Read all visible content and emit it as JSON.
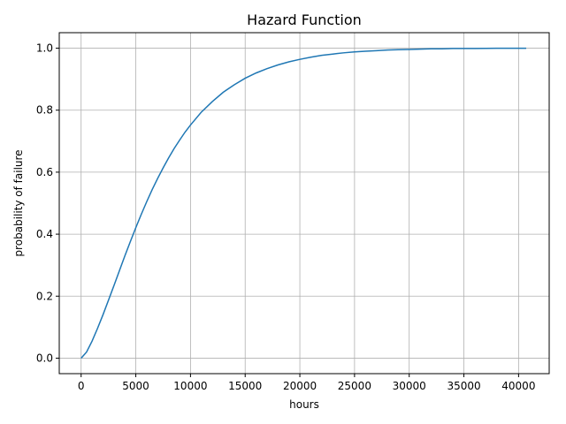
{
  "chart_data": {
    "type": "line",
    "title": "Hazard Function",
    "xlabel": "hours",
    "ylabel": "probability of failure",
    "xlim": [
      -2000,
      42800
    ],
    "ylim": [
      -0.05,
      1.05
    ],
    "xticks": [
      0,
      5000,
      10000,
      15000,
      20000,
      25000,
      30000,
      35000,
      40000
    ],
    "yticks": [
      0.0,
      0.2,
      0.4,
      0.6,
      0.8,
      1.0
    ],
    "xtick_labels": [
      "0",
      "5000",
      "10000",
      "15000",
      "20000",
      "25000",
      "30000",
      "35000",
      "40000"
    ],
    "ytick_labels": [
      "0.0",
      "0.2",
      "0.4",
      "0.6",
      "0.8",
      "1.0"
    ],
    "grid": true,
    "color": "#1f77b4",
    "series": [
      {
        "x": [
          0,
          250,
          500,
          1000,
          1500,
          2000,
          2500,
          3000,
          3500,
          4000,
          4500,
          5000,
          5500,
          6000,
          6500,
          7000,
          7500,
          8000,
          8500,
          9000,
          9500,
          10000,
          11000,
          12000,
          13000,
          14000,
          15000,
          16000,
          17000,
          18000,
          19000,
          20000,
          21000,
          22000,
          23000,
          24000,
          25000,
          26000,
          27000,
          28000,
          29000,
          30000,
          31000,
          32000,
          33000,
          34000,
          35000,
          36000,
          37000,
          38000,
          39000,
          40000,
          40700
        ],
        "y": [
          0.0,
          0.01,
          0.02,
          0.055,
          0.096,
          0.14,
          0.187,
          0.234,
          0.282,
          0.33,
          0.376,
          0.421,
          0.464,
          0.505,
          0.544,
          0.58,
          0.614,
          0.646,
          0.676,
          0.703,
          0.729,
          0.752,
          0.794,
          0.828,
          0.858,
          0.882,
          0.903,
          0.92,
          0.934,
          0.946,
          0.956,
          0.964,
          0.971,
          0.977,
          0.981,
          0.985,
          0.988,
          0.99,
          0.992,
          0.994,
          0.995,
          0.996,
          0.997,
          0.998,
          0.998,
          0.999,
          0.999,
          0.999,
          0.9995,
          0.9997,
          0.9998,
          0.9999,
          0.9999
        ]
      }
    ]
  }
}
